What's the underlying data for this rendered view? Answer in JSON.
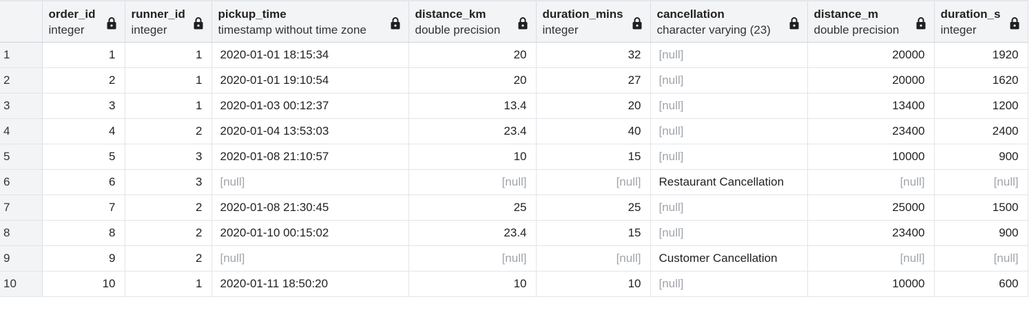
{
  "columns": [
    {
      "name": "order_id",
      "type": "integer",
      "align": "num"
    },
    {
      "name": "runner_id",
      "type": "integer",
      "align": "num"
    },
    {
      "name": "pickup_time",
      "type": "timestamp without time zone",
      "align": "txt"
    },
    {
      "name": "distance_km",
      "type": "double precision",
      "align": "num"
    },
    {
      "name": "duration_mins",
      "type": "integer",
      "align": "num"
    },
    {
      "name": "cancellation",
      "type": "character varying (23)",
      "align": "txt"
    },
    {
      "name": "distance_m",
      "type": "double precision",
      "align": "num"
    },
    {
      "name": "duration_s",
      "type": "integer",
      "align": "num"
    }
  ],
  "rows": [
    {
      "num": "1",
      "cells": [
        "1",
        "1",
        "2020-01-01 18:15:34",
        "20",
        "32",
        "[null]",
        "20000",
        "1920"
      ]
    },
    {
      "num": "2",
      "cells": [
        "2",
        "1",
        "2020-01-01 19:10:54",
        "20",
        "27",
        "[null]",
        "20000",
        "1620"
      ]
    },
    {
      "num": "3",
      "cells": [
        "3",
        "1",
        "2020-01-03 00:12:37",
        "13.4",
        "20",
        "[null]",
        "13400",
        "1200"
      ]
    },
    {
      "num": "4",
      "cells": [
        "4",
        "2",
        "2020-01-04 13:53:03",
        "23.4",
        "40",
        "[null]",
        "23400",
        "2400"
      ]
    },
    {
      "num": "5",
      "cells": [
        "5",
        "3",
        "2020-01-08 21:10:57",
        "10",
        "15",
        "[null]",
        "10000",
        "900"
      ]
    },
    {
      "num": "6",
      "cells": [
        "6",
        "3",
        "[null]",
        "[null]",
        "[null]",
        "Restaurant Cancellation",
        "[null]",
        "[null]"
      ]
    },
    {
      "num": "7",
      "cells": [
        "7",
        "2",
        "2020-01-08 21:30:45",
        "25",
        "25",
        "[null]",
        "25000",
        "1500"
      ]
    },
    {
      "num": "8",
      "cells": [
        "8",
        "2",
        "2020-01-10 00:15:02",
        "23.4",
        "15",
        "[null]",
        "23400",
        "900"
      ]
    },
    {
      "num": "9",
      "cells": [
        "9",
        "2",
        "[null]",
        "[null]",
        "[null]",
        "Customer Cancellation",
        "[null]",
        "[null]"
      ]
    },
    {
      "num": "10",
      "cells": [
        "10",
        "1",
        "2020-01-11 18:50:20",
        "10",
        "10",
        "[null]",
        "10000",
        "600"
      ]
    }
  ],
  "null_label": "[null]",
  "icons": {
    "column_lock": "lock-icon"
  },
  "colors": {
    "header_bg": "#f3f4f6",
    "null_text": "#a0a4aa",
    "text": "#222222",
    "grid_line": "#e1e4e8"
  }
}
